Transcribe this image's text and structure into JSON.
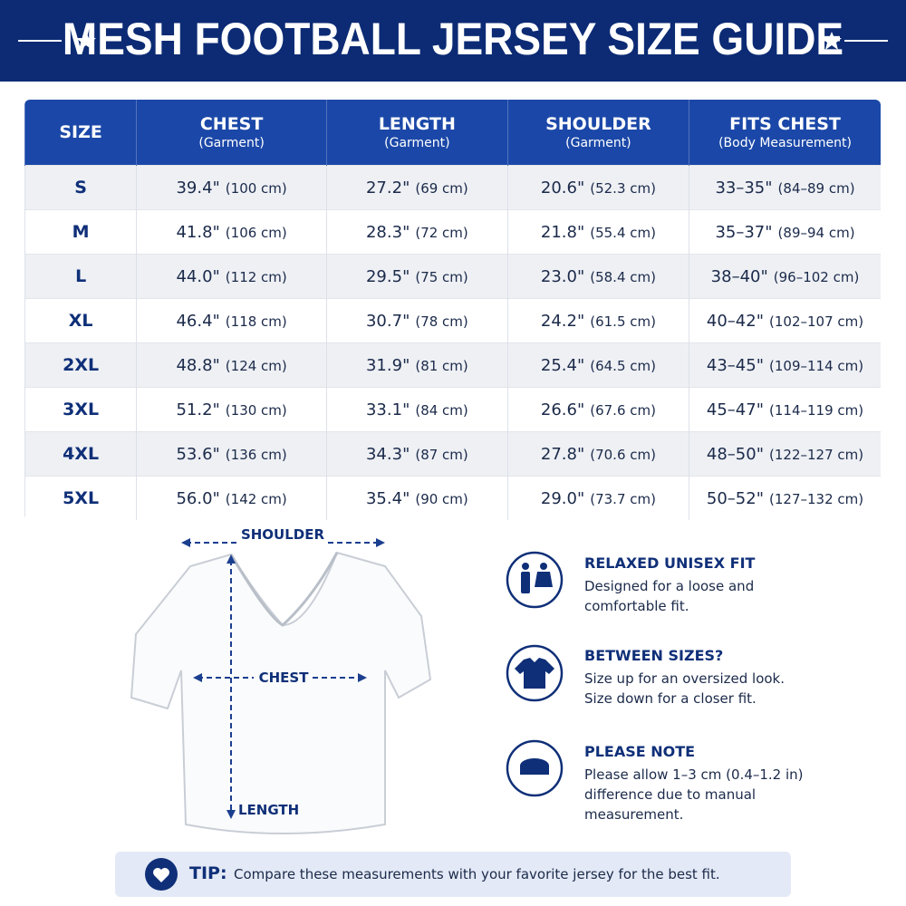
{
  "header": {
    "title": "MESH FOOTBALL JERSEY SIZE GUIDE"
  },
  "table": {
    "headers": [
      {
        "title": "SIZE"
      },
      {
        "title": "CHEST",
        "sub": "(Garment)"
      },
      {
        "title": "LENGTH",
        "sub": "(Garment)"
      },
      {
        "title": "SHOULDER",
        "sub": "(Garment)"
      },
      {
        "title": "FITS CHEST",
        "sub": "(Body Measurement)"
      }
    ],
    "rows": [
      {
        "size": "S",
        "cells": [
          [
            "39.4\"",
            "(100 cm)"
          ],
          [
            "27.2\"",
            "(69 cm)"
          ],
          [
            "20.6\"",
            "(52.3 cm)"
          ],
          [
            "33–35\"",
            "(84–89 cm)"
          ]
        ]
      },
      {
        "size": "M",
        "cells": [
          [
            "41.8\"",
            "(106 cm)"
          ],
          [
            "28.3\"",
            "(72 cm)"
          ],
          [
            "21.8\"",
            "(55.4 cm)"
          ],
          [
            "35–37\"",
            "(89–94 cm)"
          ]
        ]
      },
      {
        "size": "L",
        "cells": [
          [
            "44.0\"",
            "(112 cm)"
          ],
          [
            "29.5\"",
            "(75 cm)"
          ],
          [
            "23.0\"",
            "(58.4 cm)"
          ],
          [
            "38–40\"",
            "(96–102 cm)"
          ]
        ]
      },
      {
        "size": "XL",
        "cells": [
          [
            "46.4\"",
            "(118 cm)"
          ],
          [
            "30.7\"",
            "(78 cm)"
          ],
          [
            "24.2\"",
            "(61.5 cm)"
          ],
          [
            "40–42\"",
            "(102–107 cm)"
          ]
        ]
      },
      {
        "size": "2XL",
        "cells": [
          [
            "48.8\"",
            "(124 cm)"
          ],
          [
            "31.9\"",
            "(81 cm)"
          ],
          [
            "25.4\"",
            "(64.5 cm)"
          ],
          [
            "43–45\"",
            "(109–114 cm)"
          ]
        ]
      },
      {
        "size": "3XL",
        "cells": [
          [
            "51.2\"",
            "(130 cm)"
          ],
          [
            "33.1\"",
            "(84 cm)"
          ],
          [
            "26.6\"",
            "(67.6 cm)"
          ],
          [
            "45–47\"",
            "(114–119 cm)"
          ]
        ]
      },
      {
        "size": "4XL",
        "cells": [
          [
            "53.6\"",
            "(136 cm)"
          ],
          [
            "34.3\"",
            "(87 cm)"
          ],
          [
            "27.8\"",
            "(70.6 cm)"
          ],
          [
            "48–50\"",
            "(122–127 cm)"
          ]
        ]
      },
      {
        "size": "5XL",
        "cells": [
          [
            "56.0\"",
            "(142 cm)"
          ],
          [
            "35.4\"",
            "(90 cm)"
          ],
          [
            "29.0\"",
            "(73.7 cm)"
          ],
          [
            "50–52\"",
            "(127–132 cm)"
          ]
        ]
      }
    ]
  },
  "diagram": {
    "shoulder": "SHOULDER",
    "chest": "CHEST",
    "length": "LENGTH"
  },
  "info": [
    {
      "title": "RELAXED UNISEX FIT",
      "lines": [
        "Designed for a loose and",
        "comfortable fit."
      ]
    },
    {
      "title": "BETWEEN SIZES?",
      "lines": [
        "Size up for an oversized look.",
        "Size down for a closer fit."
      ]
    },
    {
      "title": "PLEASE NOTE",
      "lines": [
        "Please allow 1–3 cm (0.4–1.2 in)",
        "difference due to manual",
        "measurement."
      ]
    }
  ],
  "tip": {
    "label": "TIP:",
    "text": "Compare these measurements with your favorite jersey for the best fit."
  }
}
